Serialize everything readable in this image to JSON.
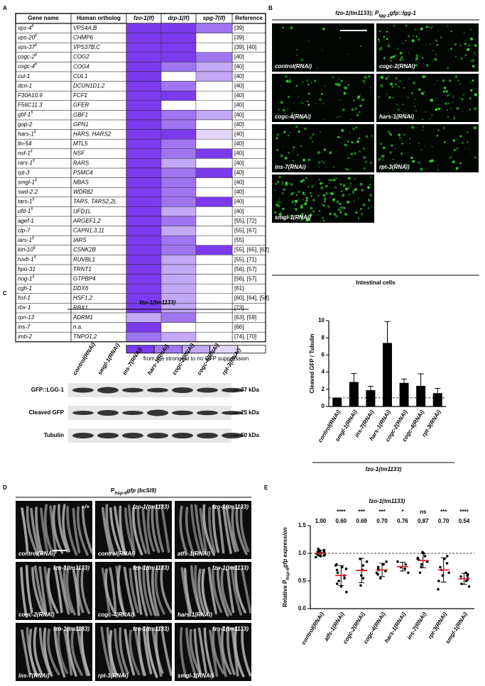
{
  "panel_labels": [
    "A",
    "B",
    "C",
    "D",
    "E"
  ],
  "panel_a": {
    "columns": [
      "Gene name",
      "Human ortholog",
      "fzo-1(lf)",
      "drp-1(lf)",
      "spg-7(lf)",
      "Reference"
    ],
    "palette": [
      "#7c3aed",
      "#9f75f0",
      "#c3a8f5",
      "#e2d6fb",
      "#ffffff"
    ],
    "rows": [
      {
        "gene": "vps-4",
        "mark": "§",
        "ortholog": "VPS4A,B",
        "levels": [
          0,
          0,
          1
        ],
        "reference": "[39]"
      },
      {
        "gene": "vps-20",
        "mark": "§",
        "ortholog": "CHMP6",
        "levels": [
          0,
          0,
          4
        ],
        "reference": "[39]"
      },
      {
        "gene": "vps-37",
        "mark": "§",
        "ortholog": "VPS37B,C",
        "levels": [
          0,
          0,
          4
        ],
        "reference": "[39], [40]"
      },
      {
        "gene": "cogc-2",
        "mark": "§",
        "ortholog": "COG2",
        "levels": [
          0,
          0,
          1
        ],
        "reference": "[40]"
      },
      {
        "gene": "cogc-4",
        "mark": "§",
        "ortholog": "COG4",
        "levels": [
          0,
          1,
          2
        ],
        "reference": "[40]"
      },
      {
        "gene": "cul-1",
        "ortholog": "CUL1",
        "levels": [
          0,
          4,
          2
        ],
        "reference": "[40]"
      },
      {
        "gene": "dcn-1",
        "ortholog": "DCUN1D1,2",
        "levels": [
          0,
          1,
          4
        ],
        "reference": "[40]"
      },
      {
        "gene": "F30A10.9",
        "ortholog": "FCF1",
        "levels": [
          0,
          0,
          4
        ],
        "reference": "[40]"
      },
      {
        "gene": "F56C11.3",
        "ortholog": "GFER",
        "levels": [
          0,
          4,
          4
        ],
        "reference": "[40]"
      },
      {
        "gene": "gbf-1",
        "mark": "§",
        "ortholog": "GBF1",
        "levels": [
          0,
          1,
          2
        ],
        "reference": "[40]"
      },
      {
        "gene": "gop-2",
        "ortholog": "GPN1",
        "levels": [
          0,
          1,
          4
        ],
        "reference": "[40]"
      },
      {
        "gene": "hars-1",
        "mark": "§",
        "ortholog": "HARS, HARS2",
        "levels": [
          0,
          0,
          3
        ],
        "reference": "[40]"
      },
      {
        "gene": "lin-54",
        "ortholog": "MTL5",
        "levels": [
          0,
          1,
          4
        ],
        "reference": "[40]"
      },
      {
        "gene": "nsf-1",
        "mark": "§",
        "ortholog": "NSF",
        "levels": [
          0,
          1,
          0
        ],
        "reference": "[40]"
      },
      {
        "gene": "rars-1",
        "mark": "§",
        "ortholog": "RARS",
        "levels": [
          0,
          2,
          4
        ],
        "reference": "[40]"
      },
      {
        "gene": "rpt-3",
        "ortholog": "PSMC4",
        "levels": [
          0,
          1,
          0
        ],
        "reference": "[40]"
      },
      {
        "gene": "smgl-1",
        "mark": "§",
        "ortholog": "NBAS",
        "levels": [
          0,
          1,
          4
        ],
        "reference": "[40]"
      },
      {
        "gene": "swd-2.2",
        "ortholog": "WDR82",
        "levels": [
          0,
          1,
          4
        ],
        "reference": "[40]"
      },
      {
        "gene": "tars-1",
        "mark": "§",
        "ortholog": "TARS, TARS2,2L",
        "levels": [
          0,
          1,
          0
        ],
        "reference": "[40]"
      },
      {
        "gene": "ufd-1",
        "mark": "§",
        "ortholog": "UFD1L",
        "levels": [
          0,
          2,
          4
        ],
        "reference": "[40]"
      },
      {
        "gene": "agef-1",
        "ortholog": "ARGEF1,2",
        "levels": [
          0,
          1,
          4
        ],
        "reference": "[55], [72]"
      },
      {
        "gene": "clp-7",
        "ortholog": "CAPN1,3,11",
        "levels": [
          0,
          2,
          4
        ],
        "reference": "[55], [67]"
      },
      {
        "gene": "iars-1",
        "mark": "§",
        "ortholog": "IARS",
        "levels": [
          0,
          1,
          4
        ],
        "reference": "[55]"
      },
      {
        "gene": "kin-10",
        "mark": "§",
        "ortholog": "CSNK2B",
        "levels": [
          0,
          1,
          0
        ],
        "reference": "[55], [65], [62]"
      },
      {
        "gene": "ruvb-1",
        "mark": "§",
        "ortholog": "RUVBL1",
        "levels": [
          0,
          2,
          4
        ],
        "reference": "[55], [71]"
      },
      {
        "gene": "hpo-31",
        "ortholog": "TRNT1",
        "levels": [
          0,
          2,
          4
        ],
        "reference": "[56], [57]"
      },
      {
        "gene": "nog-1",
        "mark": "§",
        "ortholog": "GTPBP4",
        "levels": [
          0,
          2,
          4
        ],
        "reference": "[56], [57]"
      },
      {
        "gene": "cgh-1",
        "ortholog": "DDX6",
        "levels": [
          0,
          2,
          4
        ],
        "reference": "[61]"
      },
      {
        "gene": "hsf-1",
        "ortholog": "HSF1,2",
        "levels": [
          0,
          2,
          4
        ],
        "reference": "[60], [64], [58]"
      },
      {
        "gene": "rbx-1",
        "ortholog": "RBX1",
        "levels": [
          0,
          2,
          4
        ],
        "reference": "[73]"
      },
      {
        "gene": "rpn-13",
        "ortholog": "ADRM1",
        "levels": [
          2,
          1,
          4
        ],
        "reference": "[63], [59]"
      },
      {
        "gene": "ins-7",
        "ortholog": "n.a.",
        "levels": [
          0,
          4,
          4
        ],
        "reference": "[66]"
      },
      {
        "gene": "imb-2",
        "ortholog": "TNPO1,2",
        "levels": [
          1,
          2,
          4
        ],
        "reference": "[74], [70]"
      }
    ],
    "legend": "from the strongest to no GFP suppression"
  },
  "panel_b": {
    "title": [
      "fzo-1(tm1133); P",
      "lgg-1",
      "gfp::lgg-1"
    ],
    "images": [
      "control(RNAi)",
      "cogc-2(RNAi)",
      "cogc-4(RNAi)",
      "hars-1(RNAi)",
      "ins-7(RNAi)",
      "rpt-3(RNAi)",
      "smgl-1(RNAi)"
    ],
    "footer": "Intestinal cells"
  },
  "panel_c_blot": {
    "title": "fzo-1(tm1133)",
    "lanes": [
      "control(RNAi)",
      "smgl-1(RNAi)",
      "ins-7(RNAi)",
      "hars-1(RNAi)",
      "cogc-2(RNAi)",
      "cogc-4(RNAi)",
      "rpt-3(RNAi)"
    ],
    "bands": [
      {
        "name": "GFP::LGG-1",
        "marker": "37 kDa"
      },
      {
        "name": "Cleaved GFP",
        "marker": "25 kDa"
      },
      {
        "name": "Tubulin",
        "marker": "50 kDa"
      }
    ]
  },
  "panel_d": {
    "title": [
      "P",
      "hsp-6",
      "gfp (bcSi9)"
    ],
    "images": [
      {
        "genotype": "+/+",
        "treatment": "control(RNAi)"
      },
      {
        "genotype": "fzo-1(tm1133)",
        "treatment": "control(RNAi)"
      },
      {
        "genotype": "fzo-1(tm1133)",
        "treatment": "atfs-1(RNAi)"
      },
      {
        "genotype": "fzo-1(tm1133)",
        "treatment": "cogc-2(RNAi)"
      },
      {
        "genotype": "fzo-1(tm1133)",
        "treatment": "cogc-4(RNAi)"
      },
      {
        "genotype": "fzo-1(tm1133)",
        "treatment": "hars-1(RNAi)"
      },
      {
        "genotype": "fzo-1(tm1133)",
        "treatment": "ins-7(RNAi)"
      },
      {
        "genotype": "fzo-1(tm1133)",
        "treatment": "rpt-3(RNAi)"
      },
      {
        "genotype": "fzo-1(tm1133)",
        "treatment": "smgl-1(RNAi)"
      }
    ]
  },
  "chart_data": [
    {
      "type": "bar",
      "ylabel": "Cleaved GFP / Tubulin",
      "xlabel": "fzo-1(tm1133)",
      "categories": [
        "control(RNAi)",
        "smgl-1(RNAi)",
        "ins-7(RNAi)",
        "hars-1(RNAi)",
        "cogc-2(RNAi)",
        "cogc-4(RNAi)",
        "rpt-3(RNAi)"
      ],
      "values": [
        1,
        2.85,
        1.9,
        7.4,
        2.75,
        2.4,
        1.55
      ],
      "errors": [
        0,
        1.0,
        0.45,
        2.5,
        0.45,
        1.4,
        0.55
      ],
      "color": "#000000",
      "ylim": [
        0,
        10
      ],
      "yticks": [
        0,
        2,
        4,
        6,
        8,
        10
      ],
      "reference_line": 1
    },
    {
      "type": "dot",
      "title": "fzo-1(tm1133)",
      "ylabel": [
        "Relative P",
        "hsp-6",
        "gfp expression"
      ],
      "categories": [
        "control(RNAi)",
        "atfs-1(RNAi)",
        "cogc-2(RNAi)",
        "cogc-4(RNAi)",
        "hars-1(RNAi)",
        "ins-7(RNAi)",
        "rpt-3(RNAi)",
        "smgl-1(RNAi)"
      ],
      "values": [
        1,
        0.6,
        0.69,
        0.7,
        0.76,
        0.87,
        0.7,
        0.54
      ],
      "value_labels": [
        "1.00",
        "0.60",
        "0.69",
        "0.70",
        "0.76",
        "0.87",
        "0.70",
        "0.54"
      ],
      "significance": [
        null,
        "****",
        "***",
        "***",
        "*",
        "ns",
        "***",
        "****"
      ],
      "errors": [
        0.05,
        0.18,
        0.22,
        0.12,
        0.08,
        0.13,
        0.22,
        0.1
      ],
      "points": [
        [
          0.93,
          0.95,
          0.97,
          0.98,
          0.99,
          1.0,
          1.0,
          1.01,
          1.02,
          1.03,
          1.04,
          1.05,
          1.06,
          0.96,
          0.98,
          1.08
        ],
        [
          0.3,
          0.4,
          0.45,
          0.5,
          0.55,
          0.6,
          0.65,
          0.7,
          0.75,
          0.8,
          0.72,
          0.78
        ],
        [
          0.42,
          0.55,
          0.6,
          0.7,
          0.78,
          0.9,
          0.85
        ],
        [
          0.55,
          0.62,
          0.65,
          0.7,
          0.72,
          0.75,
          0.8,
          0.85,
          0.68
        ],
        [
          0.65,
          0.72,
          0.75,
          0.8,
          0.85
        ],
        [
          0.65,
          0.75,
          0.8,
          0.85,
          0.88,
          0.9,
          0.95,
          1.0,
          1.02,
          0.92
        ],
        [
          0.35,
          0.5,
          0.6,
          0.65,
          0.7,
          0.75,
          0.82,
          0.9,
          0.95
        ],
        [
          0.4,
          0.45,
          0.5,
          0.52,
          0.55,
          0.58,
          0.6,
          0.65,
          0.62
        ]
      ],
      "ylim": [
        0,
        1.5
      ],
      "yticks": [
        {
          "value": 0,
          "label": "0.0"
        },
        0.5,
        {
          "value": 1,
          "label": "1.0"
        },
        1.5
      ],
      "reference_line": 1,
      "mean_color": "#e0242c",
      "point_color": "#000000"
    }
  ]
}
